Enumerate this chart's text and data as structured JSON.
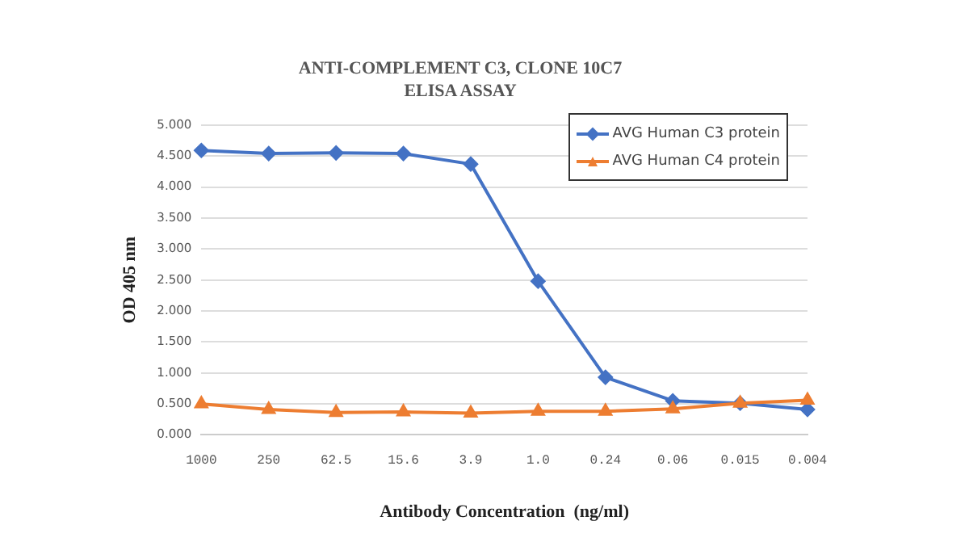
{
  "chart_data": {
    "type": "line",
    "title": "ANTI-COMPLEMENT C3, CLONE 10C7",
    "subtitle": "ELISA ASSAY",
    "xlabel": "Antibody Concentration  (ng/ml)",
    "ylabel": "OD 405 nm",
    "categories": [
      "1000",
      "250",
      "62.5",
      "15.6",
      "3.9",
      "1.0",
      "0.24",
      "0.06",
      "0.015",
      "0.004"
    ],
    "series": [
      {
        "name": "AVG Human C3 protein",
        "color": "#4472c4",
        "marker": "diamond",
        "values": [
          4.59,
          4.54,
          4.55,
          4.54,
          4.37,
          2.48,
          0.93,
          0.55,
          0.51,
          0.41
        ]
      },
      {
        "name": "AVG Human C4 protein",
        "color": "#ed7d31",
        "marker": "triangle",
        "values": [
          0.5,
          0.41,
          0.36,
          0.37,
          0.35,
          0.38,
          0.38,
          0.42,
          0.51,
          0.56
        ]
      }
    ],
    "ylim": [
      0,
      5
    ],
    "yticks": [
      {
        "value": 0,
        "label": "0.000"
      },
      {
        "value": 0.5,
        "label": "0.500"
      },
      {
        "value": 1,
        "label": "1.000"
      },
      {
        "value": 1.5,
        "label": "1.500"
      },
      {
        "value": 2,
        "label": "2.000"
      },
      {
        "value": 2.5,
        "label": "2.500"
      },
      {
        "value": 3,
        "label": "3.000"
      },
      {
        "value": 3.5,
        "label": "3.500"
      },
      {
        "value": 4,
        "label": "4.000"
      },
      {
        "value": 4.5,
        "label": "4.500"
      },
      {
        "value": 5,
        "label": "5.000"
      }
    ],
    "grid": "y",
    "legend": "top right",
    "line_style": "solid"
  }
}
